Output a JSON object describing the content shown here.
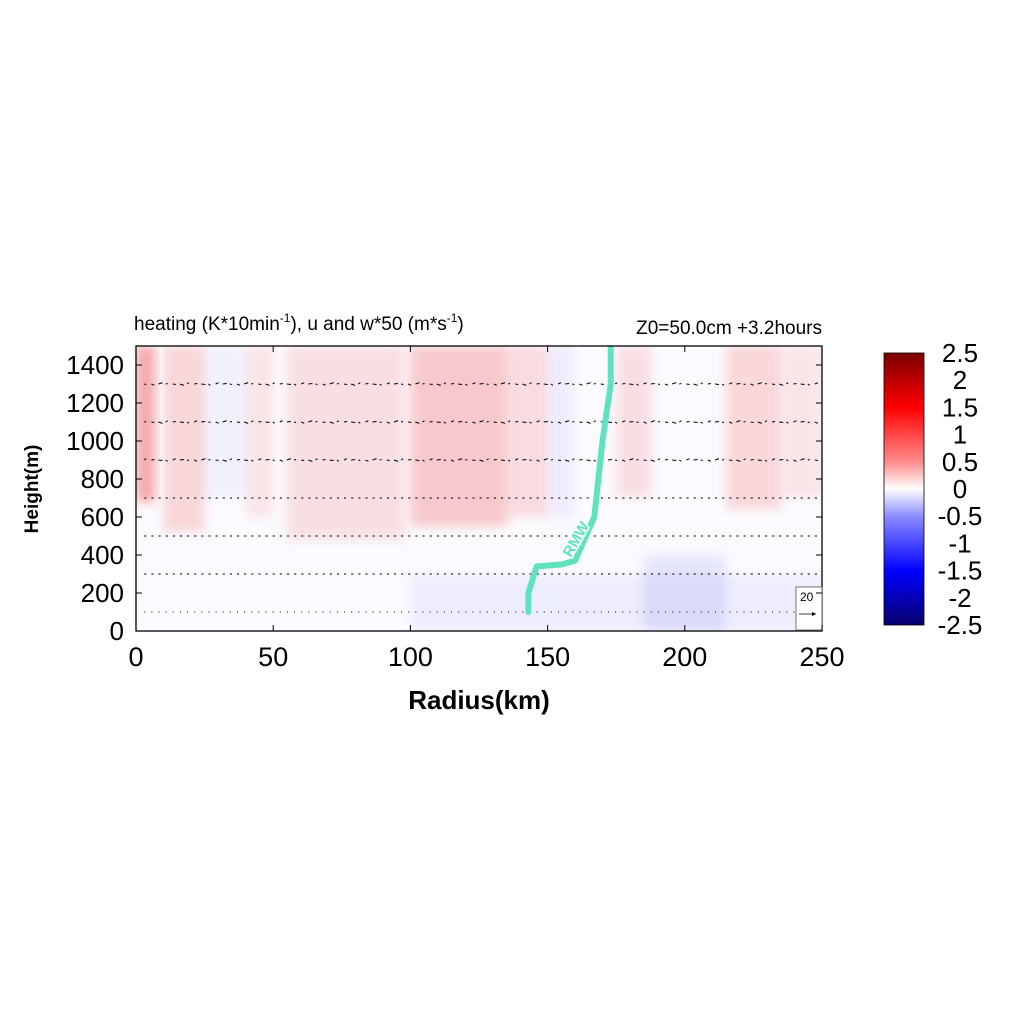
{
  "chart_data": {
    "type": "heatmap",
    "title": "heating (K*10min",
    "title_sup": "-1",
    "title_mid": "), u and w*50 (m*s",
    "title_sup2": "-1",
    "title_end": ")",
    "subtitle_right": "Z0=50.0cm  +3.2hours",
    "xlabel": "Radius(km)",
    "ylabel": "Height(m)",
    "xlim": [
      0,
      250
    ],
    "ylim": [
      0,
      1500
    ],
    "x_ticks": [
      "0",
      "50",
      "100",
      "150",
      "200",
      "250"
    ],
    "y_ticks": [
      "0",
      "200",
      "400",
      "600",
      "800",
      "1000",
      "1200",
      "1400"
    ],
    "colorbar": {
      "range": [
        -2.5,
        2.5
      ],
      "tick_labels": [
        "2.5",
        "2",
        "1.5",
        "1",
        "0.5",
        "0",
        "-0.5",
        "-1",
        "-1.5",
        "-2",
        "-2.5"
      ],
      "colors": [
        "#08006e",
        "#0000ff",
        "#8c8cff",
        "#ffffff",
        "#ff8c8c",
        "#ff0000",
        "#7a0000"
      ]
    },
    "rmw_curve": {
      "label": "RMW",
      "color": "#5fe3bf",
      "points": [
        [
          143,
          100
        ],
        [
          143,
          200
        ],
        [
          146,
          340
        ],
        [
          155,
          350
        ],
        [
          160,
          370
        ],
        [
          167,
          600
        ],
        [
          170,
          1000
        ],
        [
          173,
          1300
        ],
        [
          173,
          1500
        ]
      ]
    },
    "heating_bands": [
      {
        "x0": 0,
        "x1": 7,
        "y0": 680,
        "y1": 1500,
        "value": 0.9
      },
      {
        "x0": 10,
        "x1": 25,
        "y0": 520,
        "y1": 1500,
        "value": 0.4
      },
      {
        "x0": 40,
        "x1": 50,
        "y0": 600,
        "y1": 1500,
        "value": 0.25
      },
      {
        "x0": 55,
        "x1": 98,
        "y0": 480,
        "y1": 1500,
        "value": 0.3
      },
      {
        "x0": 100,
        "x1": 135,
        "y0": 550,
        "y1": 1500,
        "value": 0.55
      },
      {
        "x0": 135,
        "x1": 150,
        "y0": 600,
        "y1": 1500,
        "value": 0.35
      },
      {
        "x0": 175,
        "x1": 188,
        "y0": 700,
        "y1": 1500,
        "value": 0.3
      },
      {
        "x0": 215,
        "x1": 235,
        "y0": 640,
        "y1": 1500,
        "value": 0.4
      },
      {
        "x0": 236,
        "x1": 250,
        "y0": 700,
        "y1": 1500,
        "value": 0.25
      },
      {
        "x0": 25,
        "x1": 40,
        "y0": 700,
        "y1": 1500,
        "value": -0.15
      },
      {
        "x0": 150,
        "x1": 160,
        "y0": 600,
        "y1": 1500,
        "value": -0.2
      },
      {
        "x0": 100,
        "x1": 250,
        "y0": 0,
        "y1": 300,
        "value": -0.2
      },
      {
        "x0": 185,
        "x1": 215,
        "y0": 0,
        "y1": 400,
        "value": -0.3
      }
    ],
    "vector_rows": [
      100,
      300,
      500,
      700,
      900,
      1100,
      1300
    ],
    "ref_vector_label": "20"
  }
}
